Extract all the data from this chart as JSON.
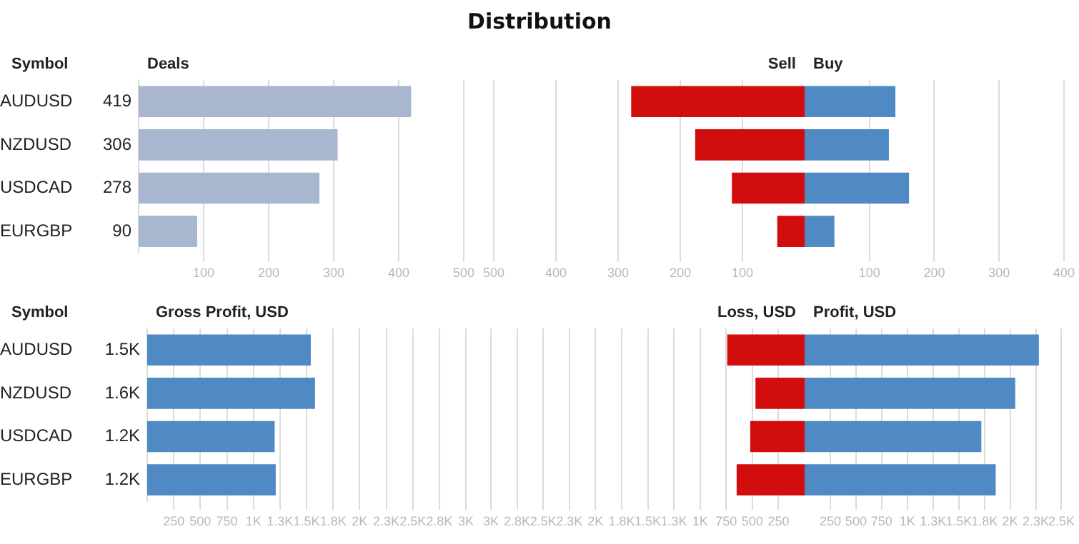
{
  "chart_data": [
    {
      "type": "bar",
      "orientation": "horizontal",
      "ylabel": "Symbol",
      "xlabel": "Deals",
      "categories": [
        "AUDUSD",
        "NZDUSD",
        "USDCAD",
        "EURGBP"
      ],
      "values": [
        419,
        306,
        278,
        90
      ],
      "value_labels": [
        "419",
        "306",
        "278",
        "90"
      ],
      "color": "#a8b7cf",
      "xlim": [
        0,
        500
      ],
      "xticks": [
        100,
        200,
        300,
        400,
        500
      ],
      "grid": "x"
    },
    {
      "type": "bar",
      "orientation": "horizontal",
      "title": "Distribution",
      "xlabel": "Sell",
      "categories": [
        null,
        null,
        null,
        null
      ],
      "values": [
        279,
        176,
        117,
        44
      ],
      "color": "#d20d0d",
      "xlim": [
        500,
        0
      ],
      "xticks": [
        500,
        400,
        300,
        200,
        100
      ],
      "grid": "x",
      "tick_labels": "x"
    },
    {
      "type": "bar",
      "orientation": "horizontal",
      "xlabel": "Buy",
      "categories": [
        null,
        null,
        null,
        null
      ],
      "values": [
        140,
        130,
        161,
        46
      ],
      "color": "#4f8ac5",
      "xlim": [
        0,
        400
      ],
      "xticks": [
        100,
        200,
        300,
        400
      ],
      "grid": "x",
      "tick_labels": "x"
    },
    {
      "type": "bar",
      "orientation": "horizontal",
      "ylabel": "Symbol",
      "xlabel": "Gross Profit, USD",
      "categories": [
        "AUDUSD",
        "NZDUSD",
        "USDCAD",
        "EURGBP"
      ],
      "values": [
        1540,
        1580,
        1200,
        1210
      ],
      "value_labels": [
        "1.5K",
        "1.6K",
        "1.2K",
        "1.2K"
      ],
      "color": "#4f8ac5",
      "xlim": [
        0,
        3000
      ],
      "xticks": [
        250,
        500,
        750,
        {
          "value": 1000,
          "label": "1K"
        },
        {
          "value": 1250,
          "label": "1.3K"
        },
        {
          "value": 1500,
          "label": "1.5K"
        },
        {
          "value": 1750,
          "label": "1.8K"
        },
        {
          "value": 2000,
          "label": "2K"
        },
        {
          "value": 2250,
          "label": "2.3K"
        },
        {
          "value": 2500,
          "label": "2.5K"
        },
        {
          "value": 2750,
          "label": "2.8K"
        },
        {
          "value": 3000,
          "label": "3K"
        }
      ],
      "grid": "x"
    },
    {
      "type": "bar",
      "orientation": "horizontal",
      "xlabel": "Loss, USD",
      "categories": [
        null,
        null,
        null,
        null
      ],
      "values": [
        740,
        470,
        520,
        650
      ],
      "color": "#d20d0d",
      "xlim": [
        3000,
        0
      ],
      "xticks": [
        {
          "value": 3000,
          "label": "3K"
        },
        {
          "value": 2750,
          "label": "2.8K"
        },
        {
          "value": 2500,
          "label": "2.5K"
        },
        {
          "value": 2250,
          "label": "2.3K"
        },
        {
          "value": 2000,
          "label": "2K"
        },
        {
          "value": 1750,
          "label": "1.8K"
        },
        {
          "value": 1500,
          "label": "1.5K"
        },
        {
          "value": 1250,
          "label": "1.3K"
        },
        {
          "value": 1000,
          "label": "1K"
        },
        750,
        500,
        250
      ],
      "grid": "x",
      "tick_labels": "x"
    },
    {
      "type": "bar",
      "orientation": "horizontal",
      "xlabel": "Profit, USD",
      "categories": [
        null,
        null,
        null,
        null
      ],
      "values": [
        2280,
        2050,
        1720,
        1860
      ],
      "color": "#4f8ac5",
      "xlim": [
        0,
        2500
      ],
      "xticks": [
        250,
        500,
        750,
        {
          "value": 1000,
          "label": "1K"
        },
        {
          "value": 1250,
          "label": "1.3K"
        },
        {
          "value": 1500,
          "label": "1.5K"
        },
        {
          "value": 1750,
          "label": "1.8K"
        },
        {
          "value": 2000,
          "label": "2K"
        },
        {
          "value": 2250,
          "label": "2.3K"
        },
        {
          "value": 2500,
          "label": "2.5K"
        }
      ],
      "grid": "x",
      "tick_labels": "x"
    }
  ]
}
